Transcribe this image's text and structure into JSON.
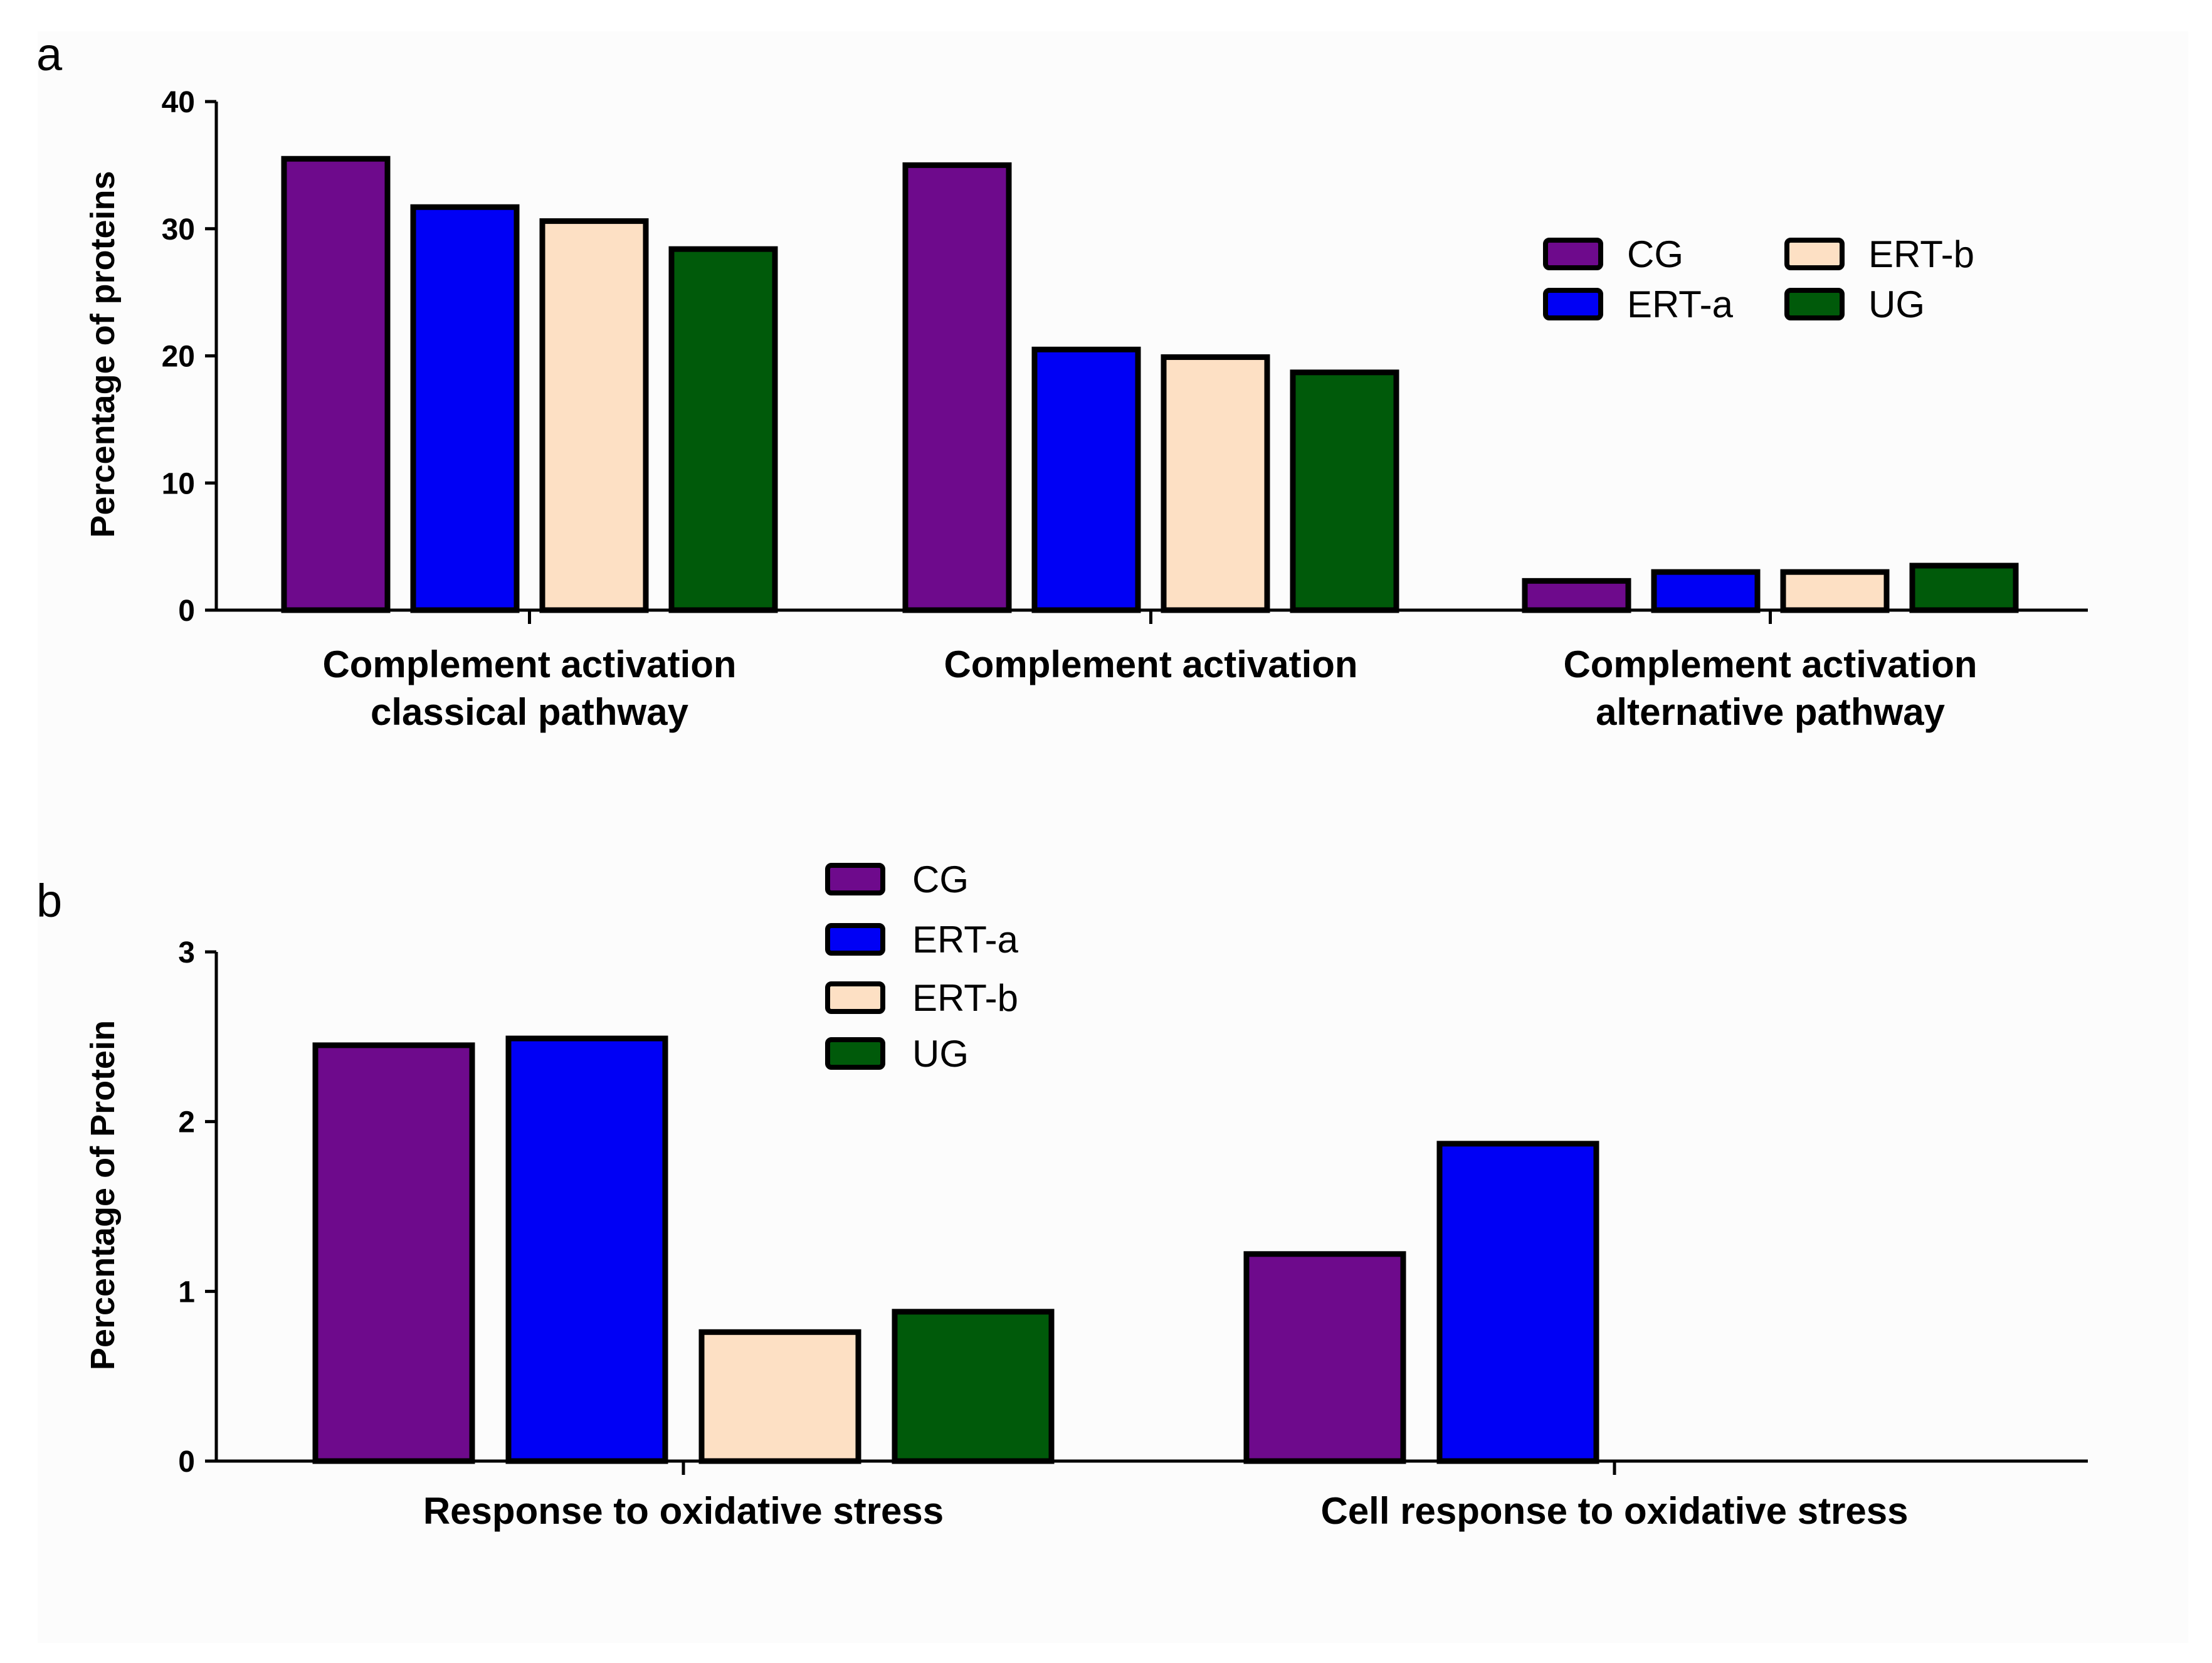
{
  "colors": {
    "CG": "#6e0a8c",
    "ERT-a": "#0000f5",
    "ERT-b": "#fde0c4",
    "UG": "#005a0a"
  },
  "chart_data": [
    {
      "type": "bar",
      "panel": "a",
      "title": "",
      "ylabel": "Percentage of proteins",
      "xlabel": "",
      "ylim": [
        0,
        40
      ],
      "yticks": [
        0,
        10,
        20,
        30,
        40
      ],
      "categories": [
        [
          "Complement activation",
          "classical pathway"
        ],
        [
          "Complement activation"
        ],
        [
          "Complement activation",
          "alternative pathway"
        ]
      ],
      "series": [
        {
          "name": "CG",
          "values": [
            35.5,
            35.0,
            2.3
          ]
        },
        {
          "name": "ERT-a",
          "values": [
            31.7,
            20.5,
            3.0
          ]
        },
        {
          "name": "ERT-b",
          "values": [
            30.6,
            19.9,
            3.0
          ]
        },
        {
          "name": "UG",
          "values": [
            28.4,
            18.7,
            3.5
          ]
        }
      ],
      "legend": {
        "placement": "upper-right",
        "columns": 2,
        "entries": [
          "CG",
          "ERT-a",
          "ERT-b",
          "UG"
        ]
      },
      "grid": false
    },
    {
      "type": "bar",
      "panel": "b",
      "title": "",
      "ylabel": "Percentage of Protein",
      "xlabel": "",
      "ylim": [
        0,
        3
      ],
      "yticks": [
        0,
        1,
        2,
        3
      ],
      "categories": [
        [
          "Response to oxidative stress"
        ],
        [
          "Cell response to oxidative stress"
        ]
      ],
      "series": [
        {
          "name": "CG",
          "values": [
            2.45,
            1.22
          ]
        },
        {
          "name": "ERT-a",
          "values": [
            2.49,
            1.87
          ]
        },
        {
          "name": "ERT-b",
          "values": [
            0.76,
            0
          ]
        },
        {
          "name": "UG",
          "values": [
            0.88,
            0
          ]
        }
      ],
      "legend": {
        "placement": "top-center",
        "columns": 1,
        "entries": [
          "CG",
          "ERT-a",
          "ERT-b",
          "UG"
        ]
      },
      "grid": false
    }
  ]
}
